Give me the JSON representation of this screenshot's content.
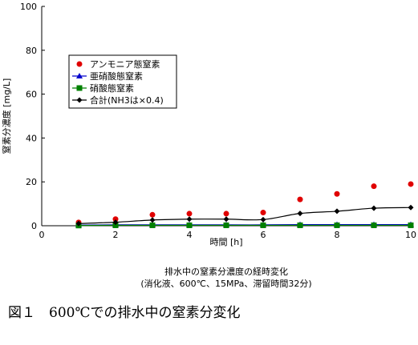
{
  "chart_data": {
    "type": "line",
    "xlabel": "時間 [h]",
    "ylabel": "窒素分濃度 [mg/L]",
    "xlim": [
      0,
      10
    ],
    "ylim": [
      0,
      100
    ],
    "xticks": [
      0,
      2,
      4,
      6,
      8,
      10
    ],
    "yticks": [
      0,
      20,
      40,
      60,
      80,
      100
    ],
    "grid": false,
    "legend_position": "top-left",
    "x": [
      1,
      2,
      3,
      4,
      5,
      6,
      7,
      8,
      9,
      10
    ],
    "series": [
      {
        "name": "アンモニア態窒素",
        "marker": "circle",
        "line": false,
        "color": "#e00000",
        "values": [
          1.5,
          3,
          5,
          5.5,
          5.5,
          6,
          12,
          14.5,
          18,
          19
        ]
      },
      {
        "name": "亜硝酸態窒素",
        "marker": "triangle",
        "line": true,
        "color": "#0000cc",
        "values": [
          0.3,
          0.4,
          0.4,
          0.4,
          0.4,
          0.4,
          0.5,
          0.5,
          0.5,
          0.5
        ]
      },
      {
        "name": "硝酸態窒素",
        "marker": "square",
        "line": true,
        "color": "#008000",
        "values": [
          0.1,
          0.2,
          0.2,
          0.2,
          0.2,
          0.2,
          0.2,
          0.2,
          0.2,
          0.2
        ]
      },
      {
        "name": "合計(NH3は×0.4)",
        "marker": "diamond",
        "line": true,
        "color": "#000000",
        "values": [
          1,
          1.6,
          2.6,
          3,
          3,
          2.8,
          5.6,
          6.6,
          8,
          8.3
        ]
      }
    ]
  },
  "subtitle": {
    "line1": "排水中の窒素分濃度の経時変化",
    "line2": "(消化液、600℃、15MPa、滞留時間32分)"
  },
  "caption": "図１　600℃での排水中の窒素分変化"
}
